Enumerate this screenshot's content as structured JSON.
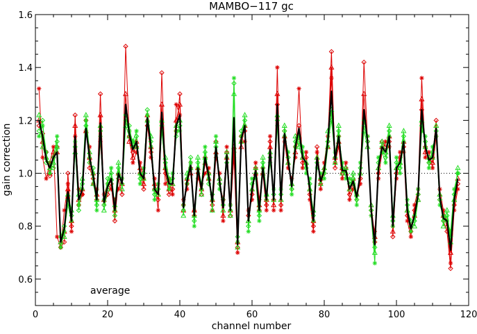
{
  "chart_data": {
    "type": "line",
    "title": "MAMBO−117 gc",
    "xlabel": "channel number",
    "ylabel": "gain correction",
    "xlim": [
      0,
      120
    ],
    "ylim": [
      0.5,
      1.6
    ],
    "x_ticks": [
      0,
      20,
      40,
      60,
      80,
      100,
      120
    ],
    "x_tick_labels": [
      "0",
      "20",
      "40",
      "60",
      "80",
      "100",
      "120"
    ],
    "y_ticks": [
      0.6,
      0.8,
      1.0,
      1.2,
      1.4,
      1.6
    ],
    "y_tick_labels": [
      "0.6",
      "0.8",
      "1.0",
      "1.2",
      "1.4",
      "1.6"
    ],
    "reference_line": 1.0,
    "annotation": "average",
    "grid": false,
    "colors": {
      "red": "#dd0000",
      "green": "#22dd22",
      "black": "#000000"
    },
    "series": [
      {
        "color": "#dd0000",
        "marker": "diamond",
        "values": [
          1.18,
          1.15,
          1.08,
          0.99,
          1.06,
          1.1,
          0.72,
          0.74,
          1.0,
          0.8,
          1.22,
          0.88,
          0.92,
          1.2,
          1.02,
          0.98,
          0.9,
          1.3,
          0.88,
          0.92,
          0.96,
          0.82,
          0.98,
          0.92,
          1.48,
          1.14,
          1.08,
          1.1,
          1.0,
          0.94,
          1.18,
          1.08,
          0.94,
          0.9,
          1.38,
          1.0,
          0.92,
          0.94,
          1.16,
          1.3,
          0.88,
          0.96,
          1.02,
          0.84,
          1.0,
          0.92,
          1.06,
          1.0,
          0.88,
          1.12,
          0.96,
          0.9,
          1.08,
          0.84,
          1.08,
          0.72,
          1.14,
          1.16,
          0.84,
          0.92,
          1.02,
          0.86,
          1.02,
          0.88,
          1.12,
          0.9,
          1.26,
          0.88,
          1.16,
          1.06,
          0.94,
          1.1,
          1.18,
          1.04,
          1.06,
          0.92,
          0.8,
          1.1,
          0.96,
          1.0,
          1.12,
          1.46,
          1.02,
          1.14,
          1.0,
          1.02,
          0.92,
          0.96,
          0.9,
          0.98,
          1.42,
          1.12,
          0.86,
          0.74,
          1.0,
          1.12,
          1.1,
          1.12,
          0.76,
          1.0,
          1.06,
          1.1,
          0.84,
          0.78,
          0.86,
          0.92,
          1.24,
          1.1,
          1.04,
          1.06,
          1.2,
          0.9,
          0.82,
          0.78,
          0.64,
          0.88,
          0.96
        ]
      },
      {
        "color": "#dd0000",
        "marker": "triangle",
        "values": [
          1.2,
          1.12,
          1.06,
          1.0,
          1.08,
          1.08,
          0.74,
          0.78,
          0.94,
          0.82,
          1.18,
          0.9,
          0.94,
          1.16,
          1.06,
          1.0,
          0.92,
          1.22,
          0.9,
          0.94,
          0.98,
          0.86,
          1.0,
          0.96,
          1.3,
          1.12,
          1.06,
          1.12,
          1.02,
          0.96,
          1.22,
          1.1,
          0.96,
          0.92,
          1.26,
          1.02,
          0.94,
          0.96,
          1.2,
          1.26,
          0.86,
          0.98,
          1.0,
          0.86,
          1.02,
          0.94,
          1.04,
          0.98,
          0.9,
          1.08,
          0.98,
          0.84,
          1.06,
          0.86,
          1.1,
          0.74,
          1.1,
          1.18,
          0.82,
          0.94,
          1.0,
          0.88,
          1.0,
          0.9,
          1.1,
          0.88,
          1.3,
          0.9,
          1.14,
          1.04,
          0.96,
          1.08,
          1.14,
          1.06,
          1.04,
          0.94,
          0.82,
          1.06,
          0.98,
          1.02,
          1.1,
          1.4,
          1.06,
          1.12,
          1.02,
          1.0,
          0.94,
          0.98,
          0.92,
          1.0,
          1.3,
          1.1,
          0.88,
          0.76,
          1.02,
          1.1,
          1.08,
          1.14,
          0.78,
          1.02,
          1.04,
          1.12,
          0.86,
          0.8,
          0.84,
          0.9,
          1.28,
          1.08,
          1.06,
          1.04,
          1.18,
          0.92,
          0.84,
          0.8,
          0.7,
          0.9,
          0.98
        ]
      },
      {
        "color": "#dd0000",
        "marker": "asterisk",
        "values": [
          1.32,
          1.06,
          0.98,
          1.04,
          1.1,
          0.76,
          0.72,
          0.86,
          0.96,
          0.78,
          1.14,
          0.94,
          0.92,
          1.16,
          1.1,
          0.96,
          0.94,
          1.12,
          0.92,
          0.96,
          0.94,
          0.9,
          0.94,
          0.98,
          1.2,
          1.16,
          1.04,
          1.08,
          1.04,
          0.98,
          1.2,
          1.06,
          0.98,
          0.86,
          1.2,
          0.96,
          0.98,
          0.92,
          1.26,
          1.22,
          0.9,
          0.94,
          1.04,
          0.86,
          0.98,
          0.96,
          1.0,
          1.02,
          0.86,
          1.06,
          1.0,
          0.82,
          1.1,
          0.88,
          1.06,
          0.7,
          1.12,
          1.12,
          0.86,
          0.9,
          1.04,
          0.9,
          1.0,
          0.86,
          1.14,
          0.86,
          1.4,
          0.86,
          1.12,
          1.02,
          0.98,
          1.06,
          1.32,
          1.02,
          1.08,
          0.9,
          0.78,
          1.08,
          0.94,
          1.04,
          1.14,
          1.36,
          1.04,
          1.1,
          0.98,
          1.04,
          0.9,
          0.94,
          0.92,
          0.96,
          1.2,
          1.14,
          0.84,
          0.78,
          0.98,
          1.08,
          1.12,
          1.1,
          0.8,
          0.98,
          1.08,
          1.08,
          0.82,
          0.76,
          0.88,
          0.94,
          1.36,
          1.06,
          1.08,
          1.02,
          1.14,
          0.94,
          0.86,
          0.82,
          0.66,
          0.86,
          0.94
        ]
      },
      {
        "color": "#22dd22",
        "marker": "diamond",
        "values": [
          1.16,
          1.2,
          1.04,
          1.04,
          1.02,
          1.12,
          0.76,
          0.8,
          0.9,
          0.84,
          1.1,
          0.86,
          0.96,
          1.18,
          1.04,
          1.02,
          0.88,
          1.16,
          0.88,
          0.98,
          1.0,
          0.84,
          1.02,
          0.96,
          1.22,
          1.18,
          1.1,
          1.14,
          0.98,
          1.0,
          1.24,
          1.12,
          0.92,
          0.94,
          1.18,
          1.04,
          0.96,
          0.98,
          1.14,
          1.18,
          0.86,
          0.98,
          1.06,
          0.82,
          1.04,
          0.94,
          1.08,
          0.96,
          0.92,
          1.1,
          0.96,
          0.88,
          1.04,
          0.86,
          1.34,
          0.76,
          1.16,
          1.2,
          0.8,
          0.96,
          1.0,
          0.84,
          1.04,
          0.9,
          1.06,
          0.92,
          1.2,
          0.92,
          1.16,
          1.06,
          0.94,
          1.12,
          1.12,
          1.08,
          1.02,
          0.96,
          0.84,
          1.04,
          0.98,
          1.0,
          1.12,
          1.2,
          1.06,
          1.16,
          1.02,
          1.0,
          0.96,
          0.98,
          0.9,
          1.02,
          1.18,
          1.12,
          0.86,
          0.72,
          1.04,
          1.1,
          1.06,
          1.16,
          0.82,
          1.04,
          1.02,
          1.14,
          0.88,
          0.8,
          0.82,
          0.92,
          1.18,
          1.12,
          1.04,
          1.08,
          1.16,
          0.9,
          0.82,
          0.84,
          0.76,
          0.92,
          1.0
        ]
      },
      {
        "color": "#22dd22",
        "marker": "triangle",
        "values": [
          1.22,
          1.1,
          1.06,
          1.02,
          1.04,
          1.1,
          0.74,
          0.76,
          0.92,
          0.86,
          1.08,
          0.92,
          0.98,
          1.22,
          1.08,
          0.96,
          0.9,
          1.18,
          0.86,
          0.94,
          0.98,
          0.88,
          1.04,
          0.94,
          1.18,
          1.14,
          1.12,
          1.1,
          1.0,
          0.98,
          1.2,
          1.14,
          0.94,
          0.92,
          1.2,
          1.06,
          0.98,
          0.96,
          1.18,
          1.2,
          0.84,
          1.0,
          1.02,
          0.84,
          1.06,
          0.92,
          1.06,
          1.0,
          0.86,
          1.12,
          0.98,
          0.86,
          1.08,
          0.84,
          1.3,
          0.72,
          1.12,
          1.22,
          0.82,
          0.94,
          1.02,
          0.86,
          1.06,
          0.92,
          1.08,
          0.9,
          1.22,
          0.9,
          1.18,
          1.04,
          0.96,
          1.14,
          1.1,
          1.06,
          1.04,
          0.94,
          0.86,
          1.06,
          0.96,
          1.02,
          1.16,
          1.24,
          1.04,
          1.18,
          1.0,
          1.02,
          0.94,
          1.0,
          0.92,
          1.0,
          1.16,
          1.1,
          0.88,
          0.7,
          1.02,
          1.12,
          1.08,
          1.18,
          0.84,
          1.02,
          1.04,
          1.16,
          0.86,
          0.82,
          0.8,
          0.9,
          1.2,
          1.1,
          1.06,
          1.06,
          1.18,
          0.92,
          0.8,
          0.86,
          0.74,
          0.9,
          1.02
        ]
      },
      {
        "color": "#22dd22",
        "marker": "asterisk",
        "values": [
          1.14,
          1.18,
          1.08,
          1.0,
          1.06,
          1.14,
          0.72,
          0.78,
          0.88,
          0.82,
          1.12,
          0.88,
          0.94,
          1.2,
          1.06,
          1.0,
          0.86,
          1.14,
          0.9,
          0.96,
          1.02,
          0.86,
          1.0,
          0.98,
          1.2,
          1.16,
          1.12,
          1.16,
          0.96,
          1.02,
          1.22,
          1.1,
          0.9,
          0.96,
          1.16,
          1.02,
          0.94,
          1.0,
          1.16,
          1.16,
          0.88,
          0.96,
          1.04,
          0.8,
          1.02,
          0.96,
          1.1,
          0.98,
          0.9,
          1.14,
          0.94,
          0.9,
          1.06,
          0.88,
          1.36,
          0.74,
          1.14,
          1.18,
          0.78,
          0.98,
          0.98,
          0.82,
          1.02,
          0.92,
          1.04,
          0.94,
          1.18,
          0.94,
          1.14,
          1.08,
          0.92,
          1.1,
          1.14,
          1.1,
          1.0,
          0.98,
          0.82,
          1.02,
          1.0,
          0.98,
          1.1,
          1.22,
          1.08,
          1.14,
          1.04,
          0.98,
          0.98,
          0.96,
          0.88,
          1.04,
          1.2,
          1.14,
          0.84,
          0.66,
          1.06,
          1.08,
          1.04,
          1.14,
          0.8,
          1.06,
          1.0,
          1.12,
          0.9,
          0.78,
          0.84,
          0.94,
          1.16,
          1.14,
          1.02,
          1.1,
          1.14,
          0.88,
          0.84,
          0.82,
          0.78,
          0.94,
          1.0
        ]
      },
      {
        "name": "average",
        "color": "#000000",
        "marker": "none",
        "thick": true,
        "values": [
          1.2,
          1.14,
          1.05,
          1.02,
          1.06,
          1.08,
          0.74,
          0.79,
          0.93,
          0.82,
          1.14,
          0.9,
          0.94,
          1.17,
          1.06,
          0.99,
          0.9,
          1.19,
          0.89,
          0.95,
          0.98,
          0.86,
          1.0,
          0.96,
          1.26,
          1.15,
          1.09,
          1.12,
          1.0,
          0.98,
          1.21,
          1.1,
          0.94,
          0.92,
          1.23,
          1.02,
          0.96,
          0.96,
          1.18,
          1.22,
          0.87,
          0.97,
          1.03,
          0.84,
          1.02,
          0.94,
          1.06,
          0.99,
          0.89,
          1.1,
          0.97,
          0.87,
          1.07,
          0.86,
          1.21,
          0.73,
          1.13,
          1.18,
          0.82,
          0.94,
          1.01,
          0.86,
          1.02,
          0.9,
          1.09,
          0.9,
          1.26,
          0.9,
          1.15,
          1.05,
          0.95,
          1.1,
          1.17,
          1.06,
          1.04,
          0.94,
          0.82,
          1.06,
          0.97,
          1.01,
          1.12,
          1.31,
          1.05,
          1.14,
          1.01,
          1.01,
          0.94,
          0.97,
          0.91,
          1.0,
          1.24,
          1.12,
          0.86,
          0.73,
          1.02,
          1.1,
          1.08,
          1.14,
          0.8,
          1.02,
          1.04,
          1.12,
          0.86,
          0.79,
          0.84,
          0.92,
          1.24,
          1.1,
          1.05,
          1.06,
          1.17,
          0.91,
          0.83,
          0.82,
          0.71,
          0.9,
          0.98
        ]
      }
    ]
  }
}
